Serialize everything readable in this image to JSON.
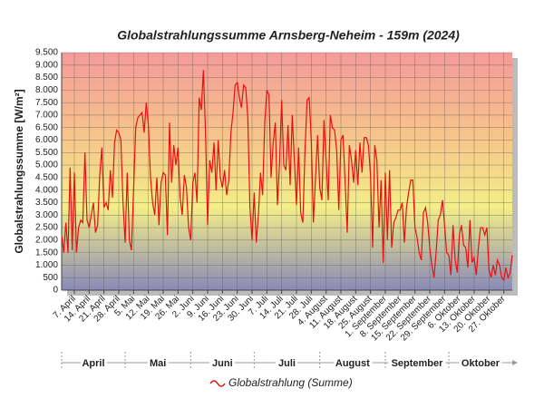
{
  "chart_data": {
    "type": "line",
    "title": "Globalstrahlungssumme Arnsberg-Neheim - 159m (2024)",
    "y_label": "Globalstrahlungssumme [W/m²]",
    "categories": [
      null,
      null,
      null,
      null,
      null,
      null,
      "7. April",
      null,
      null,
      null,
      null,
      null,
      null,
      "14. April",
      null,
      null,
      null,
      null,
      null,
      null,
      "21. April",
      null,
      null,
      null,
      null,
      null,
      null,
      "28. April",
      null,
      null,
      null,
      null,
      null,
      null,
      "5. Mai",
      null,
      null,
      null,
      null,
      null,
      null,
      "12. Mai",
      null,
      null,
      null,
      null,
      null,
      null,
      "19. Mai",
      null,
      null,
      null,
      null,
      null,
      null,
      "26. Mai",
      null,
      null,
      null,
      null,
      null,
      null,
      "2. Juni",
      null,
      null,
      null,
      null,
      null,
      null,
      "9. Juni",
      null,
      null,
      null,
      null,
      null,
      null,
      "16. Juni",
      null,
      null,
      null,
      null,
      null,
      null,
      "23. Juni",
      null,
      null,
      null,
      null,
      null,
      null,
      "30. Juni",
      null,
      null,
      null,
      null,
      null,
      null,
      "7. Juli",
      null,
      null,
      null,
      null,
      null,
      null,
      "14. Juli",
      null,
      null,
      null,
      null,
      null,
      null,
      "21. Juli",
      null,
      null,
      null,
      null,
      null,
      null,
      "28. Juli",
      null,
      null,
      null,
      null,
      null,
      null,
      "4. August",
      null,
      null,
      null,
      null,
      null,
      null,
      "11. August",
      null,
      null,
      null,
      null,
      null,
      null,
      "18. August",
      null,
      null,
      null,
      null,
      null,
      null,
      "25. August",
      null,
      null,
      null,
      null,
      null,
      null,
      "1. September",
      null,
      null,
      null,
      null,
      null,
      null,
      "8. September",
      null,
      null,
      null,
      null,
      null,
      null,
      "15. September",
      null,
      null,
      null,
      null,
      null,
      null,
      "22. September",
      null,
      null,
      null,
      null,
      null,
      null,
      "29. September",
      null,
      null,
      null,
      null,
      null,
      null,
      "6. Oktober",
      null,
      null,
      null,
      null,
      null,
      null,
      "13. Oktober",
      null,
      null,
      null,
      null,
      null,
      null,
      "20. Oktober",
      null,
      null,
      null,
      null,
      null,
      null,
      "27. Oktober",
      null,
      null,
      null,
      null
    ],
    "groups": [
      "April",
      "Mai",
      "Juni",
      "Juli",
      "August",
      "September",
      "Oktober"
    ],
    "series": [
      {
        "name": "Globalstrahlung (Summe)",
        "color": "#e81010",
        "values": [
          2200,
          1500,
          2700,
          1500,
          4900,
          1600,
          4700,
          1500,
          2500,
          2800,
          2700,
          5500,
          2800,
          2500,
          3000,
          3500,
          2300,
          2600,
          4600,
          5700,
          3300,
          3500,
          3200,
          4800,
          3700,
          5900,
          6400,
          6300,
          6000,
          3500,
          1900,
          4700,
          2000,
          1600,
          4000,
          6500,
          6900,
          7000,
          7100,
          6300,
          7500,
          6600,
          4500,
          3500,
          3000,
          4500,
          2600,
          4300,
          4700,
          4600,
          2200,
          6700,
          4300,
          5800,
          5000,
          5700,
          3700,
          3000,
          4600,
          4100,
          2500,
          2000,
          4300,
          4700,
          3500,
          7700,
          7200,
          8800,
          6300,
          2600,
          5200,
          4700,
          5900,
          4000,
          6000,
          4500,
          4100,
          4800,
          3800,
          4400,
          6300,
          7100,
          8200,
          8300,
          7700,
          7300,
          8200,
          8100,
          6900,
          3300,
          2000,
          3900,
          1900,
          3000,
          4700,
          3800,
          6700,
          8000,
          7800,
          4500,
          5900,
          6700,
          3400,
          5100,
          7600,
          5000,
          4800,
          6600,
          4200,
          7000,
          5200,
          3400,
          5700,
          3100,
          2700,
          5500,
          7600,
          7700,
          6000,
          2700,
          4500,
          6200,
          4100,
          3600,
          6800,
          5200,
          3600,
          7000,
          6500,
          6400,
          5600,
          3200,
          6000,
          6200,
          4300,
          2300,
          5800,
          5200,
          4300,
          5600,
          4200,
          5900,
          4700,
          6100,
          6100,
          5800,
          4600,
          1700,
          5800,
          5200,
          2500,
          4400,
          1100,
          4700,
          2000,
          4800,
          1700,
          2700,
          2900,
          3200,
          3200,
          3500,
          1900,
          3300,
          3900,
          4400,
          4400,
          2500,
          2100,
          1500,
          1200,
          3100,
          3300,
          2700,
          1700,
          1000,
          500,
          1500,
          2800,
          3000,
          3600,
          2600,
          1500,
          1400,
          600,
          2600,
          1200,
          700,
          2200,
          2600,
          1800,
          1700,
          900,
          2800,
          1100,
          1300,
          600,
          1700,
          2500,
          2500,
          2200,
          2500,
          800,
          500,
          1000,
          600,
          1200,
          1000,
          500,
          400,
          900,
          500,
          700,
          1400
        ]
      }
    ],
    "ylim": [
      0,
      9500
    ],
    "yticks": [
      0,
      500,
      {
        "value": 1000,
        "label": "1.000"
      },
      {
        "value": 1500,
        "label": "1.500"
      },
      {
        "value": 2000,
        "label": "2.000"
      },
      {
        "value": 2500,
        "label": "2.500"
      },
      {
        "value": 3000,
        "label": "3.000"
      },
      {
        "value": 3500,
        "label": "3.500"
      },
      {
        "value": 4000,
        "label": "4.000"
      },
      {
        "value": 4500,
        "label": "4.500"
      },
      {
        "value": 5000,
        "label": "5.000"
      },
      {
        "value": 5500,
        "label": "5.500"
      },
      {
        "value": 6000,
        "label": "6.000"
      },
      {
        "value": 6500,
        "label": "6.500"
      },
      {
        "value": 7000,
        "label": "7.000"
      },
      {
        "value": 7500,
        "label": "7.500"
      },
      {
        "value": 8000,
        "label": "8.000"
      },
      {
        "value": 8500,
        "label": "8.500"
      },
      {
        "value": 9000,
        "label": "9.000"
      },
      {
        "value": 9500,
        "label": "9.500"
      }
    ],
    "grid": true
  }
}
